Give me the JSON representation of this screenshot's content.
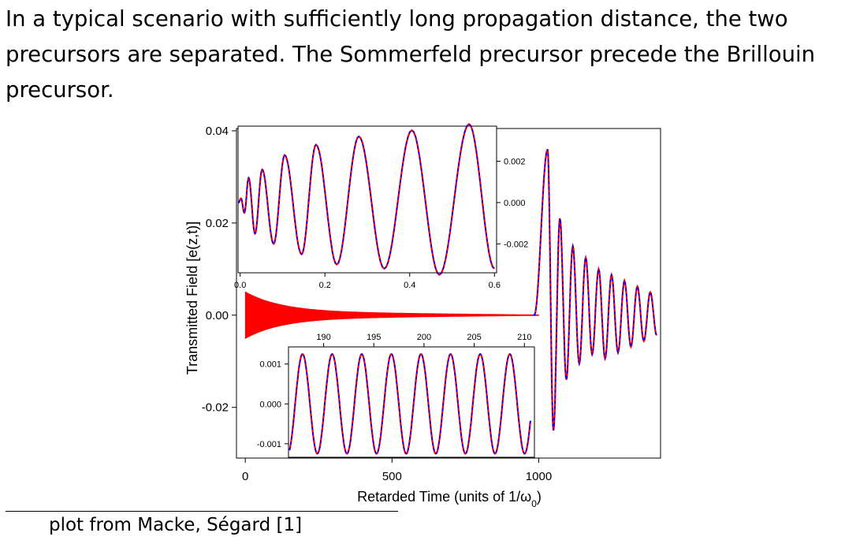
{
  "intro_text": "In a typical scenario with sufficiently long propagation distance, the two precursors are separated. The Sommerfeld precursor precede the Brillouin precursor.",
  "footnote": "plot from Macke, Ségard [1]",
  "colors": {
    "theory": "#ff0000",
    "experiment": "#0000ff",
    "axis": "#000000"
  },
  "chart_data": [
    {
      "type": "line",
      "title": "",
      "xlabel": "Retarded Time (units of 1/ω0)",
      "ylabel": "Transmitted Field [e(z,t)]",
      "xlim": [
        -30,
        1415
      ],
      "ylim": [
        -0.031,
        0.0405
      ],
      "xticks": [
        0,
        500,
        1000
      ],
      "xtick_labels": [
        "0",
        "500",
        "1000"
      ],
      "yticks": [
        -0.02,
        0.0,
        0.02,
        0.04
      ],
      "ytick_labels": [
        "-0.02",
        "0.00",
        "0.02",
        "0.04"
      ],
      "grid": false,
      "legend": "none",
      "sommerfeld_precursor": {
        "t_range": [
          0,
          1000
        ],
        "initial_amplitude": 0.005,
        "decay": "rapid, then near zero"
      },
      "brillouin_precursor": {
        "onset": 1000,
        "points": [
          {
            "x": 985,
            "y": 0.0
          },
          {
            "x": 1030,
            "y": 0.036
          },
          {
            "x": 1050,
            "y": -0.025
          },
          {
            "x": 1072,
            "y": 0.021
          },
          {
            "x": 1094,
            "y": -0.014
          },
          {
            "x": 1116,
            "y": 0.015
          },
          {
            "x": 1138,
            "y": -0.0105
          },
          {
            "x": 1160,
            "y": 0.0125
          },
          {
            "x": 1182,
            "y": -0.0085
          },
          {
            "x": 1204,
            "y": 0.01
          },
          {
            "x": 1415,
            "y": 0.004
          }
        ]
      },
      "series": [
        {
          "style": "red solid line"
        },
        {
          "style": "blue dashed line"
        }
      ]
    },
    {
      "type": "line",
      "panel": "inset-upper",
      "xlim": [
        -0.005,
        0.605
      ],
      "ylim": [
        -0.0034,
        0.0037
      ],
      "xticks": [
        0.0,
        0.2,
        0.4,
        0.6
      ],
      "xtick_labels": [
        "0.0",
        "0.2",
        "0.4",
        "0.6"
      ],
      "yticks": [
        -0.002,
        0.0,
        0.002
      ],
      "ytick_labels": [
        "-0.002",
        "0.000",
        "0.002"
      ],
      "grid": false,
      "peaks": [
        {
          "x": 0.002,
          "y": 0.0002
        },
        {
          "x": 0.02,
          "y": 0.0012
        },
        {
          "x": 0.052,
          "y": 0.0016
        },
        {
          "x": 0.105,
          "y": 0.0023
        },
        {
          "x": 0.179,
          "y": 0.0028
        },
        {
          "x": 0.28,
          "y": 0.0032
        },
        {
          "x": 0.405,
          "y": 0.0035
        },
        {
          "x": 0.54,
          "y": 0.0038
        }
      ],
      "troughs": [
        {
          "x": 0.01,
          "y": -0.0005
        },
        {
          "x": 0.035,
          "y": -0.0015
        },
        {
          "x": 0.079,
          "y": -0.002
        },
        {
          "x": 0.145,
          "y": -0.0025
        },
        {
          "x": 0.228,
          "y": -0.003
        },
        {
          "x": 0.34,
          "y": -0.0032
        },
        {
          "x": 0.47,
          "y": -0.0035
        },
        {
          "x": 0.6,
          "y": -0.0032
        }
      ]
    },
    {
      "type": "line",
      "panel": "inset-lower",
      "xlim": [
        186.5,
        211
      ],
      "ylim": [
        -0.00134,
        0.00143
      ],
      "xticks": [
        190,
        195,
        200,
        205,
        210
      ],
      "xtick_labels": [
        "190",
        "195",
        "200",
        "205",
        "210"
      ],
      "yticks": [
        -0.001,
        0.0,
        0.001
      ],
      "ytick_labels": [
        "-0.001",
        "0.000",
        "0.001"
      ],
      "grid": false,
      "amplitude": 0.00125,
      "period": 2.95,
      "first_peak_x": 187.9,
      "start_x": 186.6,
      "end_x": 210.6
    }
  ]
}
